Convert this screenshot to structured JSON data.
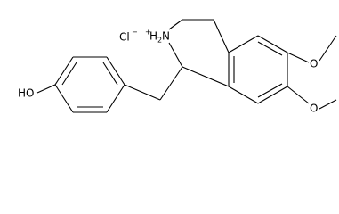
{
  "labels": {
    "chloride": "Cl",
    "chloride_charge": "−",
    "ammonium_charge": "+",
    "ammonium_h": "H",
    "ammonium_h_count": "2",
    "ammonium_n": "N",
    "methoxy_o_1": "O",
    "methoxy_o_2": "O",
    "hydroxy": "HO"
  }
}
